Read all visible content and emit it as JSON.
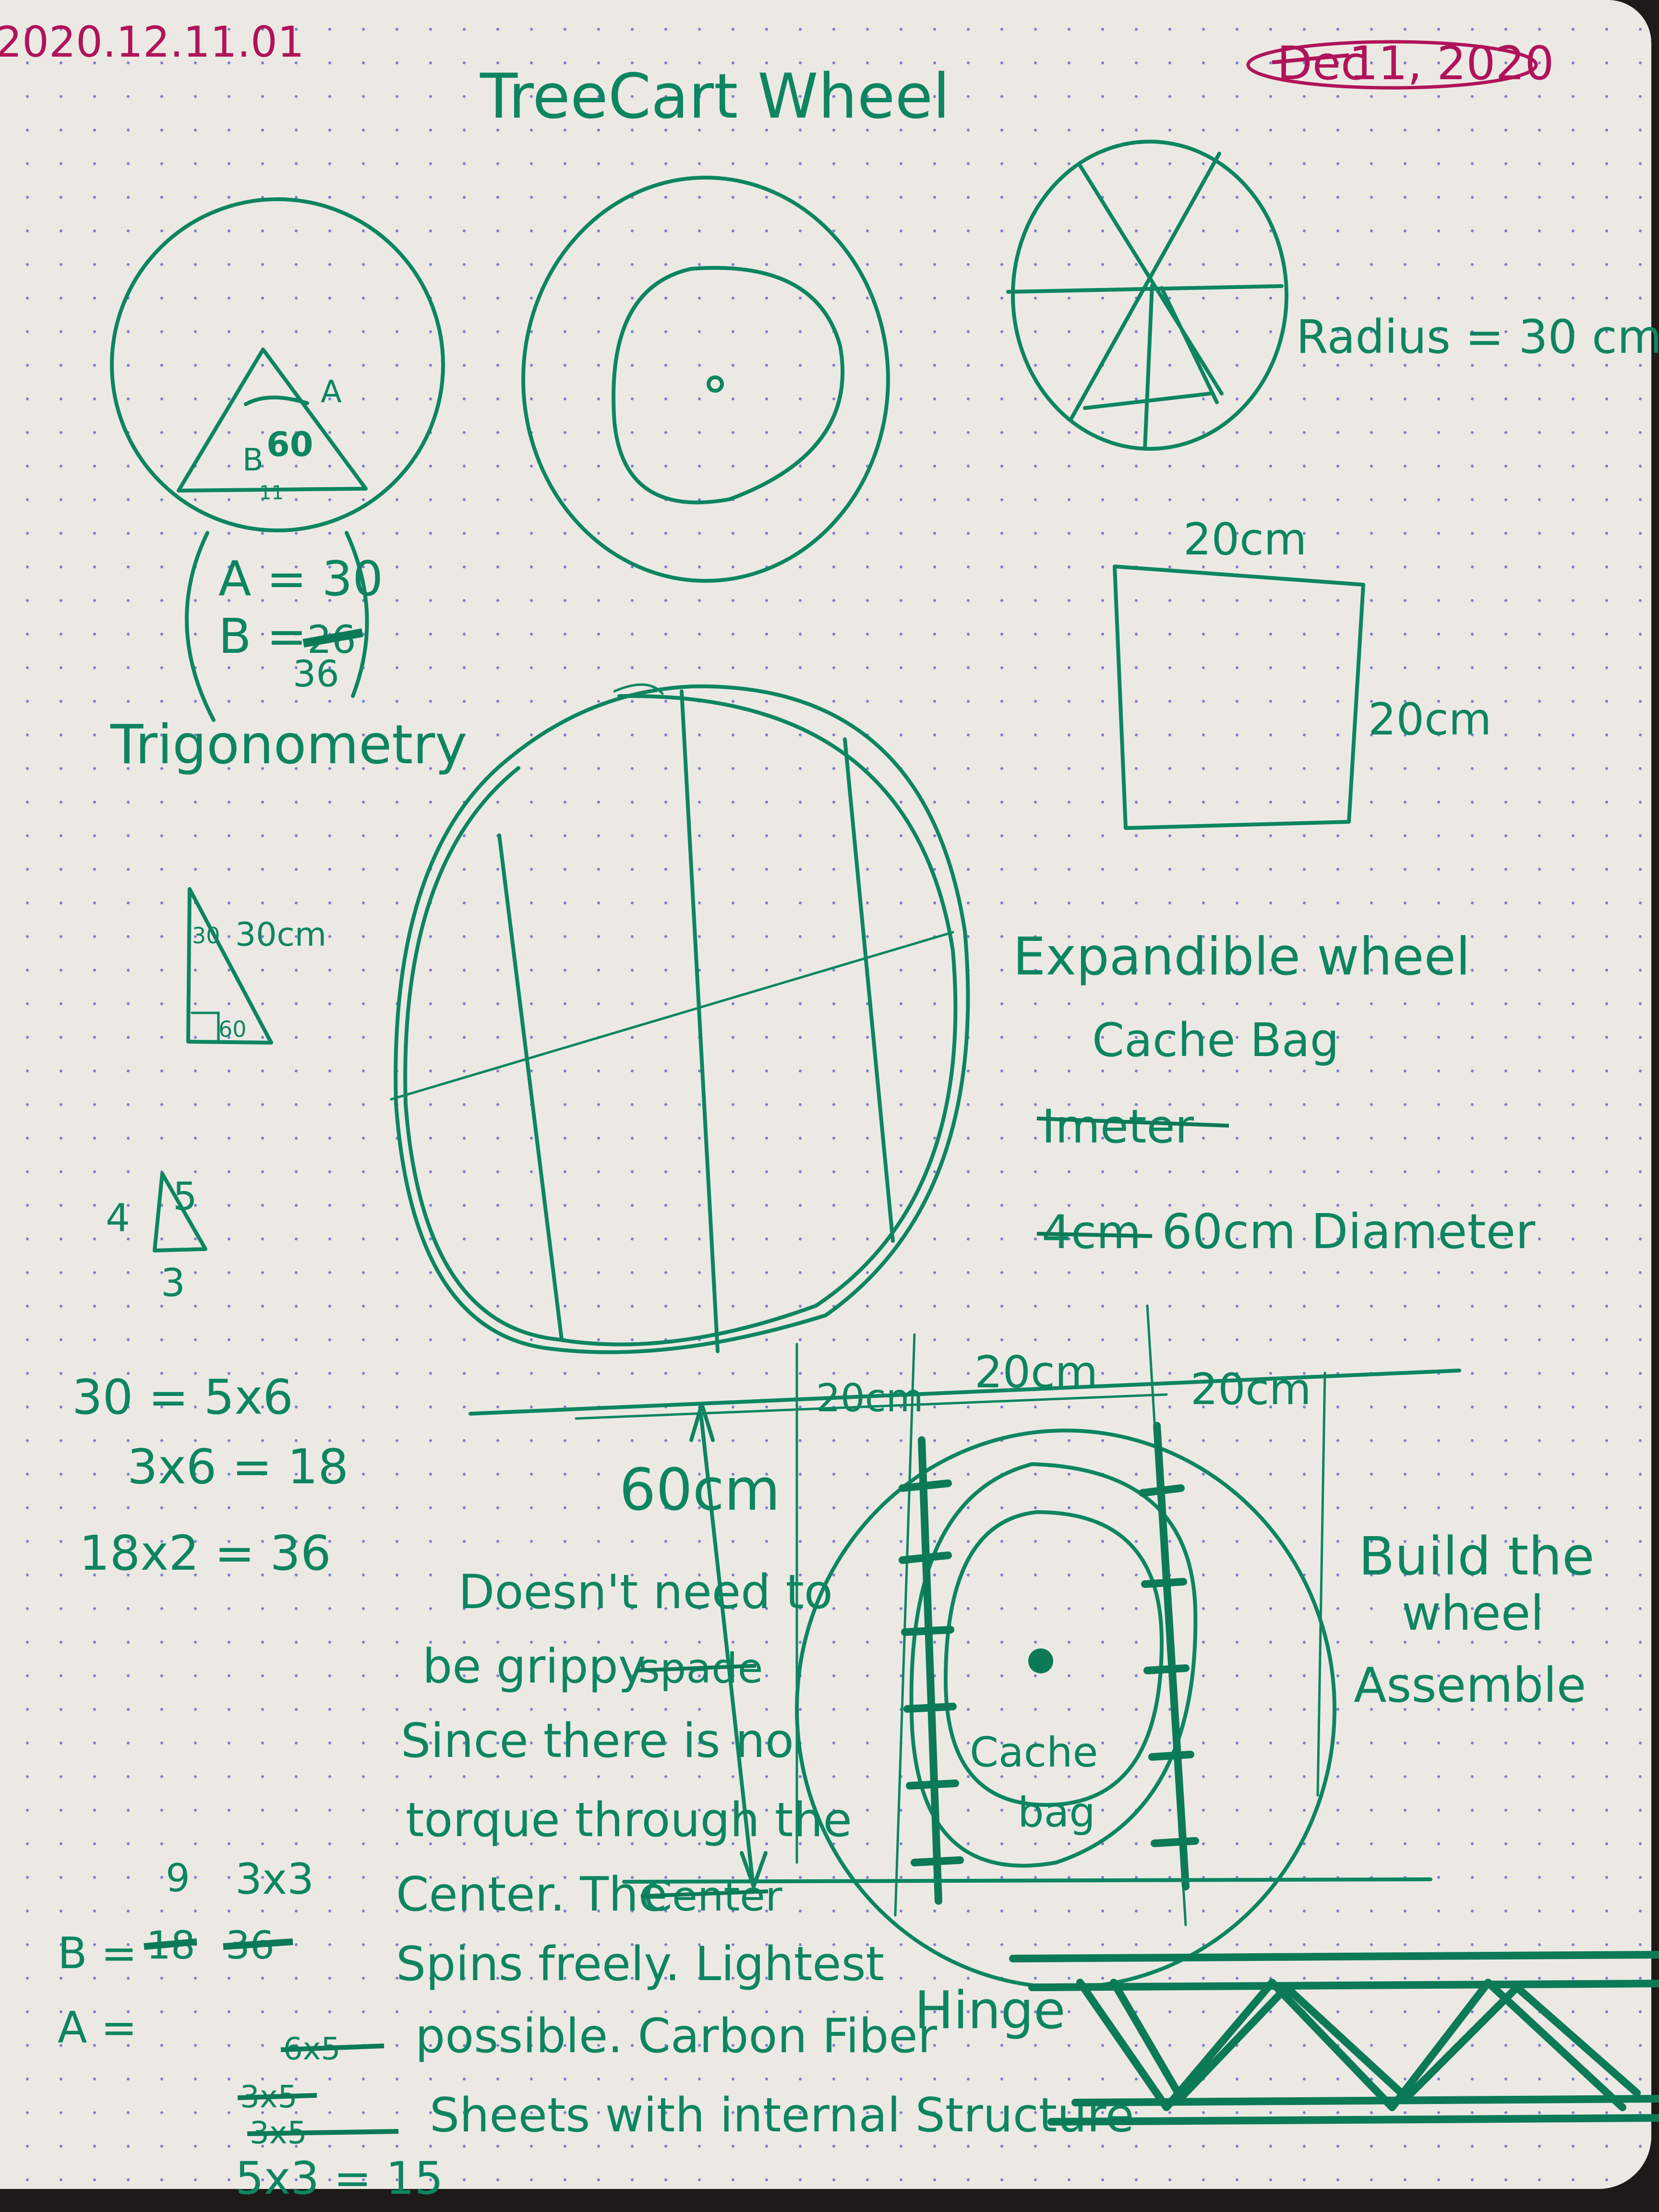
{
  "header": {
    "entry_id": "2020.12.11.01",
    "title": "TreeCart Wheel",
    "date_struck": "Dec",
    "date": "11, 2020"
  },
  "triangle_circle": {
    "label_a": "A",
    "label_b": "B",
    "angle": "60",
    "tick": "11"
  },
  "equations_box": {
    "line_a": "A = 30",
    "line_b": "B = ",
    "line_b_struck": "26",
    "line_b_value": "36"
  },
  "trig_label": "Trigonometry",
  "spoke_wheel": {
    "radius_label": "Radius = 30 cm"
  },
  "square": {
    "top_label": "20cm",
    "side_label": "20cm"
  },
  "small_triangle": {
    "angle_top": "30",
    "side": "30cm",
    "angle_bottom": "60"
  },
  "right_triangle_345": {
    "side_4": "4",
    "side_5": "5",
    "side_3": "3"
  },
  "math_lines": [
    "30 = 5x6",
    "3x6 = 18",
    "18x2 = 36"
  ],
  "expand_notes": {
    "line1": "Expandible wheel",
    "line2": "Cache Bag",
    "line3_struck": "Imeter",
    "line4_struck": "4cm",
    "line4": "60cm Diameter"
  },
  "assembly": {
    "height_label": "60cm",
    "dim_left": "20cm",
    "dim_mid": "20cm",
    "dim_right": "20cm",
    "center_label_1": "Cache",
    "center_label_2": "bag",
    "hinge_label": "Hinge"
  },
  "build_notes": [
    "Build the",
    "wheel",
    "Assemble"
  ],
  "paragraph": {
    "line1": "Doesn't need to",
    "line2": "be grippy",
    "line2_struck": "spade",
    "line3": "Since there is no",
    "line4": "torque through the",
    "line5": "Center. The",
    "line5_struck": "Center",
    "line6": "Spins freely. Lightest",
    "line7": "possible. Carbon Fiber",
    "line8": "Sheets with internal Structure"
  },
  "bottom_calc": {
    "b_prefix": "B =",
    "b_num_top": "9",
    "b_struck_1": "18",
    "b_struck_2": "36",
    "b_val": "3x3",
    "a_prefix": "A =",
    "struck_1": "6x5",
    "struck_2": "3x5",
    "struck_3": "3x5",
    "final": "5x3 = 15"
  }
}
